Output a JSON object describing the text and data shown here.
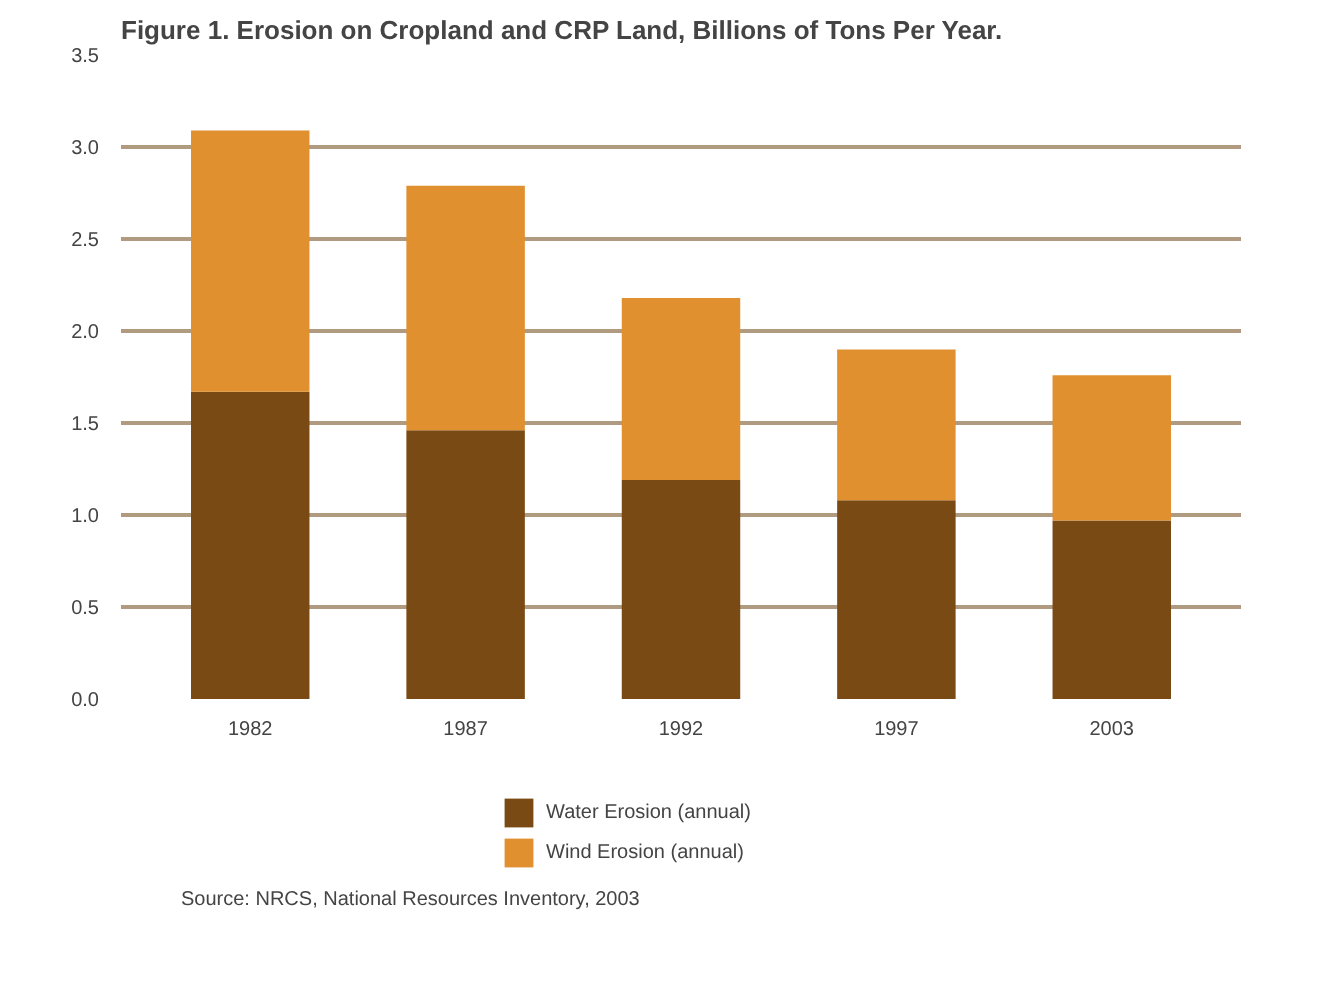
{
  "chart_data": {
    "type": "bar",
    "stacked": true,
    "title": "Figure 1. Erosion on Cropland and CRP Land, Billions of Tons Per Year.",
    "categories": [
      "1982",
      "1987",
      "1992",
      "1997",
      "2003"
    ],
    "series": [
      {
        "name": "Water Erosion (annual)",
        "color": "#7a4a14",
        "values": [
          1.67,
          1.46,
          1.19,
          1.08,
          0.97
        ]
      },
      {
        "name": "Wind Erosion (annual)",
        "color": "#e0902e",
        "values": [
          1.42,
          1.33,
          0.99,
          0.82,
          0.79
        ]
      }
    ],
    "ylim": [
      0,
      3.5
    ],
    "yticks": [
      {
        "value": 0,
        "label": "0.0"
      },
      {
        "value": 0.5,
        "label": "0.5"
      },
      {
        "value": 1,
        "label": "1.0"
      },
      {
        "value": 1.5,
        "label": "1.5"
      },
      {
        "value": 2,
        "label": "2.0"
      },
      {
        "value": 2.5,
        "label": "2.5"
      },
      {
        "value": 3,
        "label": "3.0"
      },
      {
        "value": 3.5,
        "label": "3.5"
      }
    ],
    "grid": "y",
    "legend": "bottom",
    "annotations": [
      "Source: NRCS, National Resources Inventory, 2003"
    ]
  }
}
